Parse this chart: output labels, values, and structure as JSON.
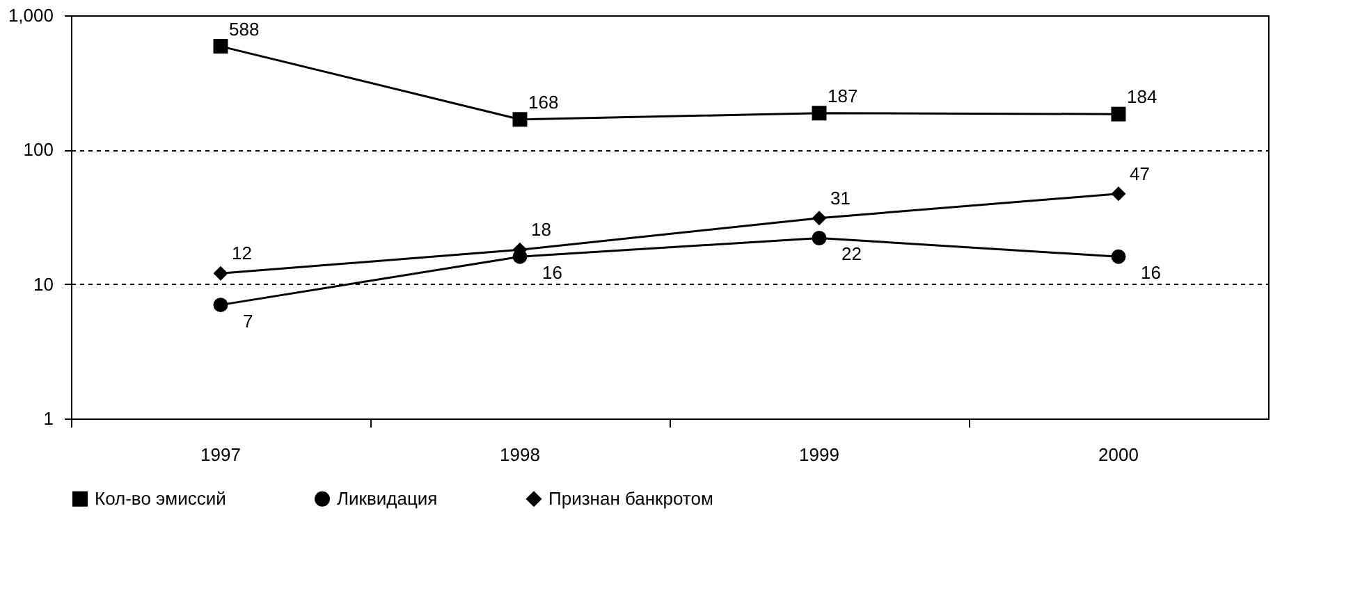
{
  "chart_data": {
    "type": "line",
    "categories": [
      "1997",
      "1998",
      "1999",
      "2000"
    ],
    "series": [
      {
        "name": "Кол-во эмиссий",
        "color": "#000000",
        "marker": "square",
        "values": [
          588,
          168,
          187,
          184
        ]
      },
      {
        "name": "Ликвидация",
        "color": "#000000",
        "marker": "circle",
        "values": [
          7,
          16,
          22,
          16
        ]
      },
      {
        "name": "Признан банкротом",
        "color": "#000000",
        "marker": "diamond",
        "values": [
          12,
          18,
          31,
          47
        ]
      }
    ],
    "log": "y",
    "ylim": [
      1,
      1000
    ],
    "yticks": [
      1,
      10,
      100,
      {
        "value": 1000,
        "label": "1,000"
      }
    ],
    "grid": "y",
    "legend": "bottom",
    "data_labels": true,
    "line_style": "solid"
  }
}
